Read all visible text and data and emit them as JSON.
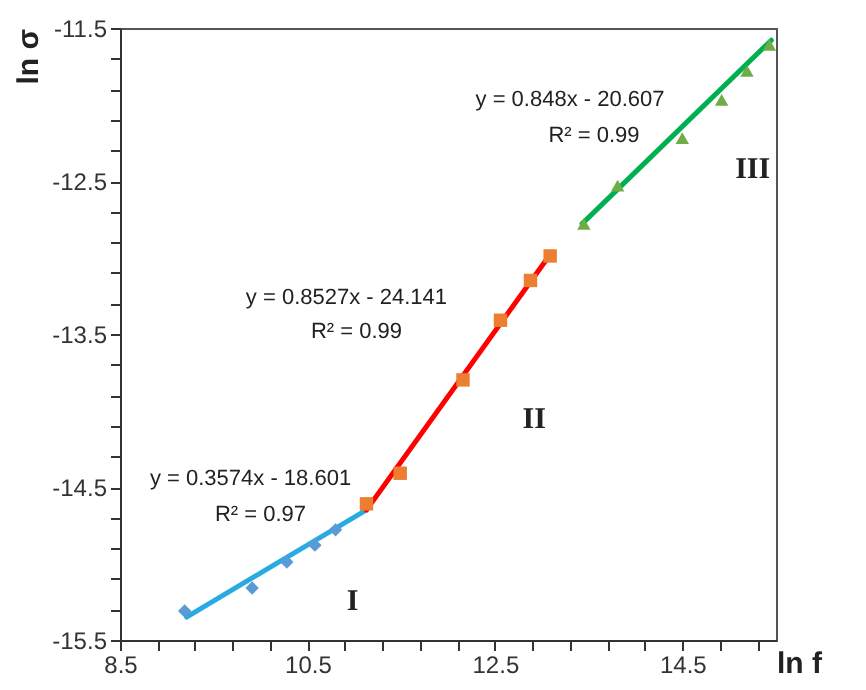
{
  "chart_data": {
    "type": "scatter",
    "xlabel": "ln f",
    "ylabel": "ln σ",
    "xlim": [
      8.5,
      15.5
    ],
    "ylim": [
      -15.5,
      -11.5
    ],
    "xticks": [
      8.5,
      {
        "value": 8.9,
        "label": null
      },
      {
        "value": 9.3,
        "label": null
      },
      {
        "value": 9.7,
        "label": null
      },
      {
        "value": 10.1,
        "label": null
      },
      10.5,
      {
        "value": 10.9,
        "label": null
      },
      {
        "value": 11.3,
        "label": null
      },
      {
        "value": 11.7,
        "label": null
      },
      {
        "value": 12.1,
        "label": null
      },
      12.5,
      {
        "value": 12.9,
        "label": null
      },
      {
        "value": 13.3,
        "label": null
      },
      {
        "value": 13.7,
        "label": null
      },
      {
        "value": 14.1,
        "label": null
      },
      14.5,
      {
        "value": 14.9,
        "label": null
      },
      {
        "value": 15.3,
        "label": null
      }
    ],
    "yticks": [
      -15.5,
      {
        "value": -15.3,
        "label": null
      },
      {
        "value": -15.1,
        "label": null
      },
      {
        "value": -14.9,
        "label": null
      },
      {
        "value": -14.7,
        "label": null
      },
      -14.5,
      {
        "value": -14.3,
        "label": null
      },
      {
        "value": -14.1,
        "label": null
      },
      {
        "value": -13.9,
        "label": null
      },
      {
        "value": -13.7,
        "label": null
      },
      -13.5,
      {
        "value": -13.3,
        "label": null
      },
      {
        "value": -13.1,
        "label": null
      },
      {
        "value": -12.9,
        "label": null
      },
      {
        "value": -12.7,
        "label": null
      },
      -12.5,
      {
        "value": -12.3,
        "label": null
      },
      {
        "value": -12.1,
        "label": null
      },
      {
        "value": -11.9,
        "label": null
      },
      {
        "value": -11.7,
        "label": null
      },
      -11.5
    ],
    "grid": false,
    "series": [
      {
        "marker": "diamond",
        "color": "#5b9bd5",
        "x": [
          9.19,
          9.91,
          10.28,
          10.58,
          10.8
        ],
        "values": [
          -15.31,
          -15.16,
          -14.99,
          -14.88,
          -14.78
        ]
      },
      {
        "marker": "square",
        "color": "#ed7d31",
        "x": [
          11.13,
          11.49,
          12.16,
          12.56,
          12.88,
          13.09
        ],
        "values": [
          -14.61,
          -14.41,
          -13.8,
          -13.41,
          -13.15,
          -12.99
        ]
      },
      {
        "marker": "triangle",
        "color": "#70ad47",
        "x": [
          13.45,
          13.81,
          14.5,
          14.92,
          15.19,
          15.43
        ],
        "values": [
          -12.78,
          -12.53,
          -12.22,
          -11.97,
          -11.78,
          -11.61
        ]
      },
      {
        "type": "line",
        "marker": "none",
        "color": "#29abe2",
        "x": [
          9.21,
          11.13
        ],
        "values": [
          -15.35,
          -14.65
        ]
      },
      {
        "type": "line",
        "marker": "none",
        "color": "#ff0000",
        "x": [
          11.13,
          13.09
        ],
        "values": [
          -14.65,
          -12.98
        ]
      },
      {
        "type": "line",
        "marker": "none",
        "color": "#00b050",
        "x": [
          13.43,
          15.45
        ],
        "values": [
          -12.78,
          -11.58
        ]
      }
    ],
    "annotations": [
      "y = 0.3574x - 18.601",
      "R² = 0.97",
      "I",
      "y = 0.8527x - 24.141",
      "R² = 0.99",
      "II",
      "y = 0.848x - 20.607",
      "R² = 0.99",
      "III"
    ]
  }
}
